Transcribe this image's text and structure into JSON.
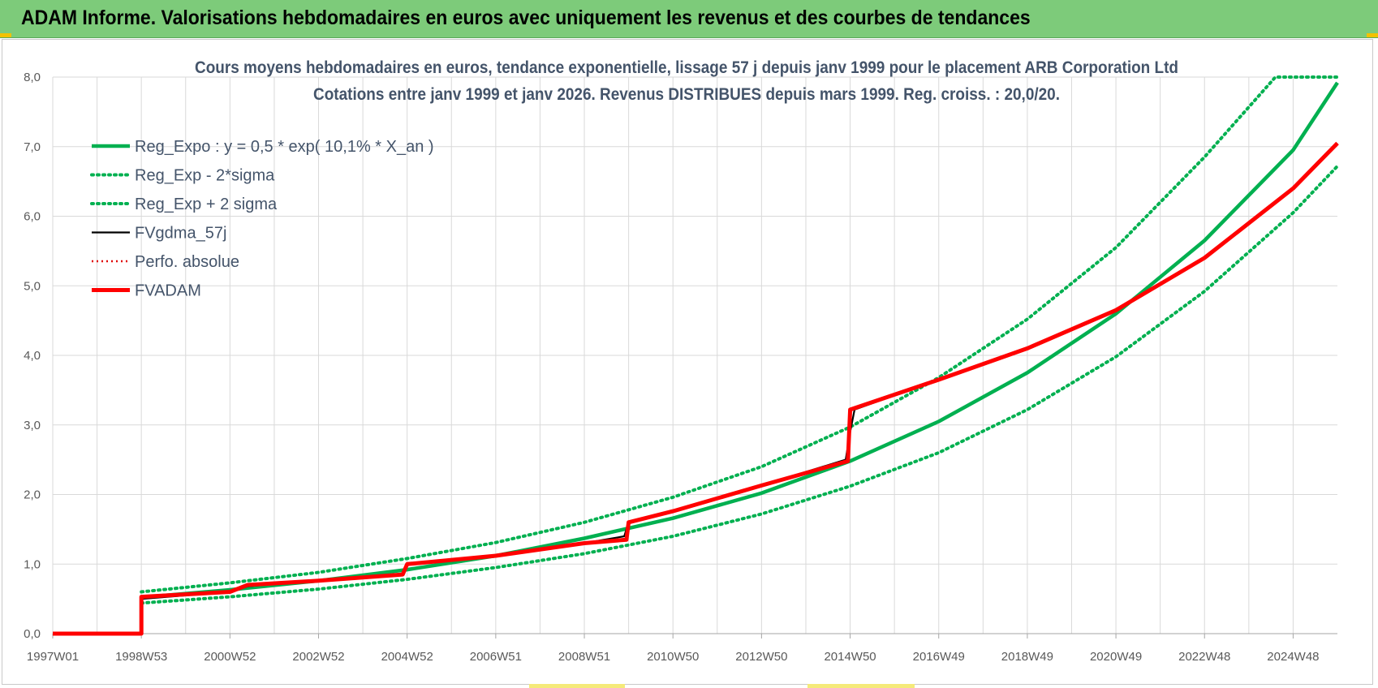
{
  "banner": {
    "title": "ADAM Informe. Valorisations hebdomadaires en euros avec uniquement les revenus et des courbes de tendances"
  },
  "colors": {
    "banner": "#7dcb7a",
    "trend": "#00b050",
    "smooth": "#000000",
    "perfo": "#e00000",
    "adam": "#ff0000",
    "grid": "#d9d9d9",
    "title": "#44546a"
  },
  "chart_data": {
    "type": "line",
    "title": "Cours moyens hebdomadaires en euros, tendance exponentielle, lissage 57 j depuis janv 1999 pour le placement ARB Corporation Ltd",
    "subtitle": "Cotations entre janv 1999 et janv 2026. Revenus DISTRIBUES depuis mars 1999. Reg. croiss. : 20,0/20.",
    "xlabel": "",
    "ylabel": "",
    "ylim": [
      0,
      8
    ],
    "yticks": [
      "0,0",
      "1,0",
      "2,0",
      "3,0",
      "4,0",
      "5,0",
      "6,0",
      "7,0",
      "8,0"
    ],
    "xlim": [
      1997.0,
      2026.0
    ],
    "xticks": [
      {
        "label": "1997W01",
        "x": 1997.0
      },
      {
        "label": "1998W53",
        "x": 1999.0
      },
      {
        "label": "2000W52",
        "x": 2001.0
      },
      {
        "label": "2002W52",
        "x": 2003.0
      },
      {
        "label": "2004W52",
        "x": 2005.0
      },
      {
        "label": "2006W51",
        "x": 2007.0
      },
      {
        "label": "2008W51",
        "x": 2009.0
      },
      {
        "label": "2010W50",
        "x": 2011.0
      },
      {
        "label": "2012W50",
        "x": 2013.0
      },
      {
        "label": "2014W50",
        "x": 2015.0
      },
      {
        "label": "2016W49",
        "x": 2017.0
      },
      {
        "label": "2018W49",
        "x": 2019.0
      },
      {
        "label": "2020W49",
        "x": 2021.0
      },
      {
        "label": "2022W48",
        "x": 2023.0
      },
      {
        "label": "2024W48",
        "x": 2025.0
      }
    ],
    "grid": true,
    "legend_position": "top-left",
    "series": [
      {
        "name": "Reg_Expo : y = 0,5 * exp( 10,1% *  X_an )",
        "style": "solid",
        "color": "#00b050",
        "x": [
          1999.0,
          2001.0,
          2003.0,
          2005.0,
          2007.0,
          2009.0,
          2011.0,
          2013.0,
          2015.0,
          2017.0,
          2019.0,
          2021.0,
          2023.0,
          2025.0,
          2026.0
        ],
        "y": [
          0.52,
          0.63,
          0.76,
          0.92,
          1.12,
          1.37,
          1.66,
          2.02,
          2.48,
          3.05,
          3.75,
          4.6,
          5.65,
          6.95,
          7.92
        ]
      },
      {
        "name": "Reg_Exp - 2*sigma",
        "style": "dotted",
        "color": "#00b050",
        "x": [
          1999.0,
          2001.0,
          2003.0,
          2005.0,
          2007.0,
          2009.0,
          2011.0,
          2013.0,
          2015.0,
          2017.0,
          2019.0,
          2021.0,
          2023.0,
          2025.0,
          2026.0
        ],
        "y": [
          0.44,
          0.53,
          0.64,
          0.78,
          0.95,
          1.15,
          1.4,
          1.72,
          2.12,
          2.6,
          3.22,
          3.98,
          4.92,
          6.05,
          6.72
        ]
      },
      {
        "name": "Reg_Exp + 2 sigma",
        "style": "dotted",
        "color": "#00b050",
        "x": [
          1999.0,
          2001.0,
          2003.0,
          2005.0,
          2007.0,
          2009.0,
          2011.0,
          2013.0,
          2015.0,
          2017.0,
          2019.0,
          2021.0,
          2023.0,
          2024.6,
          2026.0
        ],
        "y": [
          0.6,
          0.73,
          0.88,
          1.08,
          1.31,
          1.6,
          1.96,
          2.4,
          2.97,
          3.68,
          4.52,
          5.55,
          6.85,
          8.0,
          8.0
        ]
      },
      {
        "name": "FVgdma_57j",
        "style": "solid",
        "color": "#000000",
        "x": [
          1997.0,
          1999.0,
          1999.0,
          2001.0,
          2001.4,
          2003.0,
          2004.9,
          2005.0,
          2007.0,
          2009.0,
          2009.9,
          2010.0,
          2011.0,
          2013.0,
          2014.9,
          2015.0,
          2015.1,
          2017.0,
          2019.0,
          2021.0,
          2023.0,
          2025.0,
          2026.0
        ],
        "y": [
          0.0,
          0.0,
          0.5,
          0.6,
          0.68,
          0.77,
          0.86,
          0.99,
          1.12,
          1.3,
          1.4,
          1.6,
          1.76,
          2.13,
          2.5,
          2.9,
          3.22,
          3.65,
          4.1,
          4.65,
          5.4,
          6.4,
          7.05
        ]
      },
      {
        "name": "Perfo. absolue",
        "style": "dotted",
        "color": "#e00000",
        "x": [],
        "y": []
      },
      {
        "name": "FVADAM",
        "style": "solid",
        "color": "#ff0000",
        "x": [
          1997.0,
          1999.0,
          1999.0,
          2001.0,
          2001.4,
          2003.0,
          2004.9,
          2005.0,
          2007.0,
          2009.0,
          2009.95,
          2010.0,
          2011.0,
          2013.0,
          2014.95,
          2015.0,
          2017.0,
          2019.0,
          2021.0,
          2023.0,
          2025.0,
          2026.0
        ],
        "y": [
          0.0,
          0.0,
          0.53,
          0.6,
          0.7,
          0.76,
          0.85,
          1.0,
          1.12,
          1.3,
          1.35,
          1.6,
          1.76,
          2.13,
          2.48,
          3.22,
          3.65,
          4.1,
          4.65,
          5.4,
          6.4,
          7.05
        ]
      }
    ]
  }
}
